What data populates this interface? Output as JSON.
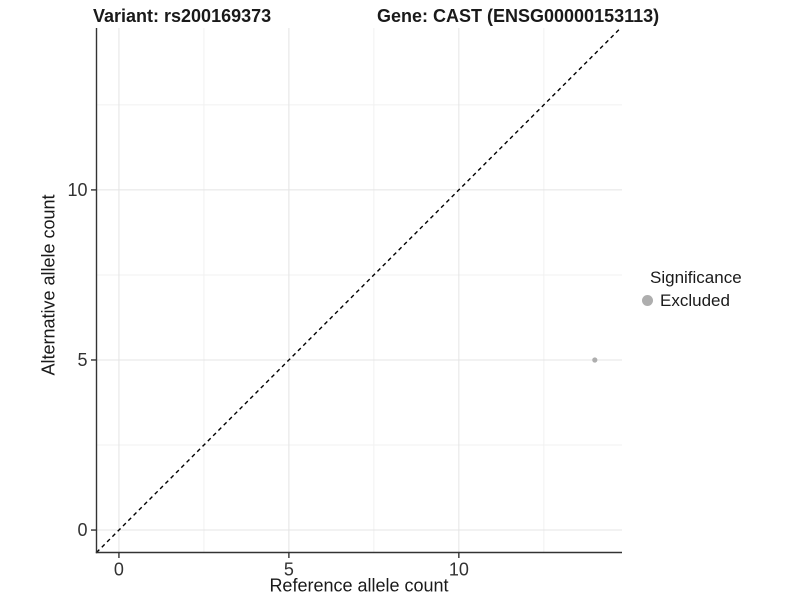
{
  "chart_data": {
    "type": "scatter",
    "title_left": "Variant: rs200169373",
    "title_right": "Gene: CAST (ENSG00000153113)",
    "xlabel": "Reference allele count",
    "ylabel": "Alternative allele count",
    "xlim": [
      -0.66,
      14.8
    ],
    "ylim": [
      -0.66,
      14.76
    ],
    "x_major_ticks": [
      0,
      5,
      10
    ],
    "y_major_ticks": [
      0,
      5,
      10
    ],
    "x_minor_ticks": [
      2.5,
      7.5,
      12.5
    ],
    "y_minor_ticks": [
      2.5,
      7.5,
      12.5
    ],
    "grid": "major-and-minor",
    "identity_line": {
      "slope": 1,
      "intercept": 0,
      "style": "dashed"
    },
    "series": [
      {
        "name": "Excluded",
        "points": [
          {
            "x": 14,
            "y": 5
          }
        ]
      }
    ],
    "legend": {
      "position": "right",
      "title": "Significance",
      "items": [
        {
          "label": "Excluded",
          "color": "#aeaeae"
        }
      ]
    },
    "colors": {
      "point": "#aeaeae",
      "grid_major": "#e4e4e4",
      "grid_minor": "#f1f1f1",
      "axis_line": "#333333",
      "tick_label": "#333333",
      "identity_line": "#000000",
      "title_text": "#1a1a1a"
    }
  }
}
